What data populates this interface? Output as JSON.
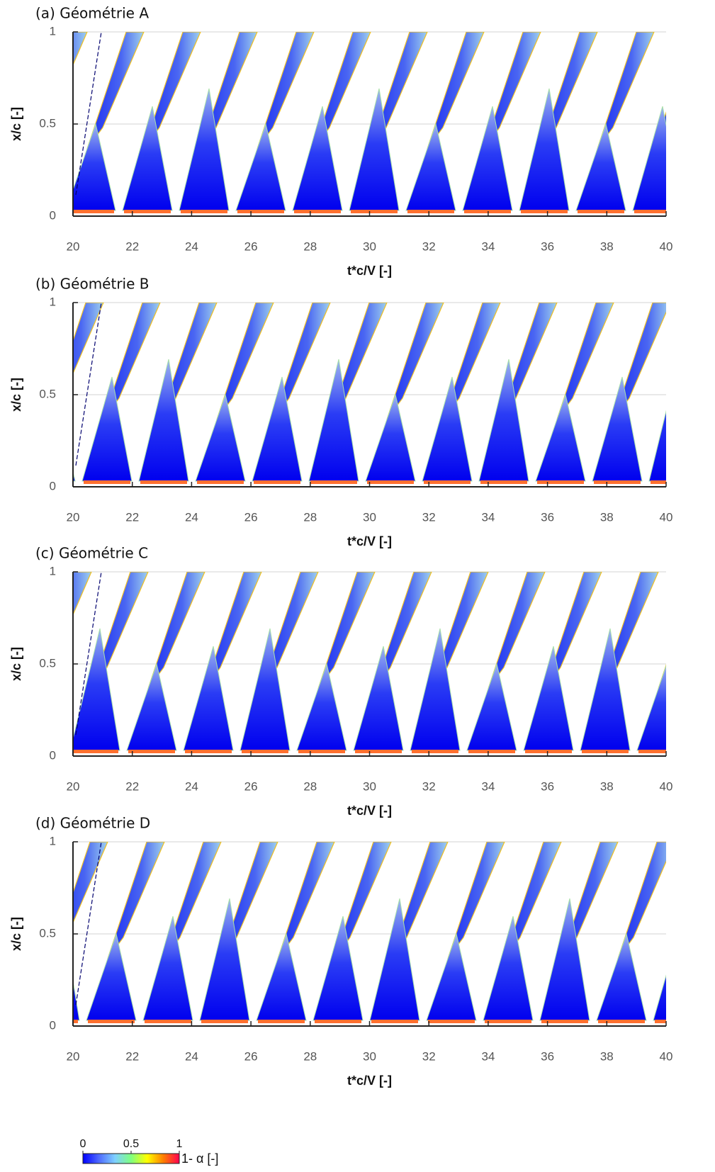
{
  "chart_data": [
    {
      "type": "heatmap",
      "title": "(a) Géométrie A",
      "xlabel": "t*c/V [-]",
      "ylabel": "x/c [-]",
      "xlim": [
        20,
        40
      ],
      "xticks": [
        20,
        22,
        24,
        26,
        28,
        30,
        32,
        34,
        36,
        38,
        40
      ],
      "ylim": [
        0,
        1
      ],
      "yticks": [
        0,
        0.5,
        1
      ],
      "grid": true
    },
    {
      "type": "heatmap",
      "title": "(b) Géométrie B",
      "xlabel": "t*c/V [-]",
      "ylabel": "x/c [-]",
      "xlim": [
        20,
        40
      ],
      "xticks": [
        20,
        22,
        24,
        26,
        28,
        30,
        32,
        34,
        36,
        38,
        40
      ],
      "ylim": [
        0,
        1
      ],
      "yticks": [
        0,
        0.5,
        1
      ],
      "grid": true
    },
    {
      "type": "heatmap",
      "title": "(c) Géométrie C",
      "xlabel": "t*c/V [-]",
      "ylabel": "x/c [-]",
      "xlim": [
        20,
        40
      ],
      "xticks": [
        20,
        22,
        24,
        26,
        28,
        30,
        32,
        34,
        36,
        38,
        40
      ],
      "ylim": [
        0,
        1
      ],
      "yticks": [
        0,
        0.5,
        1
      ],
      "grid": true
    },
    {
      "type": "heatmap",
      "title": "(d) Géométrie D",
      "xlabel": "t*c/V [-]",
      "ylabel": "x/c [-]",
      "xlim": [
        20,
        40
      ],
      "xticks": [
        20,
        22,
        24,
        26,
        28,
        30,
        32,
        34,
        36,
        38,
        40
      ],
      "ylim": [
        0,
        1
      ],
      "yticks": [
        0,
        0.5,
        1
      ],
      "grid": true
    }
  ],
  "colorbar": {
    "label": "1- α [-]",
    "lim": [
      0,
      1
    ],
    "ticks": [
      0,
      0.5,
      1
    ],
    "colormap": [
      "#0000ff",
      "#4f6bff",
      "#7fd0ff",
      "#7fff7f",
      "#ffff00",
      "#ff7f00",
      "#ff0050"
    ]
  }
}
